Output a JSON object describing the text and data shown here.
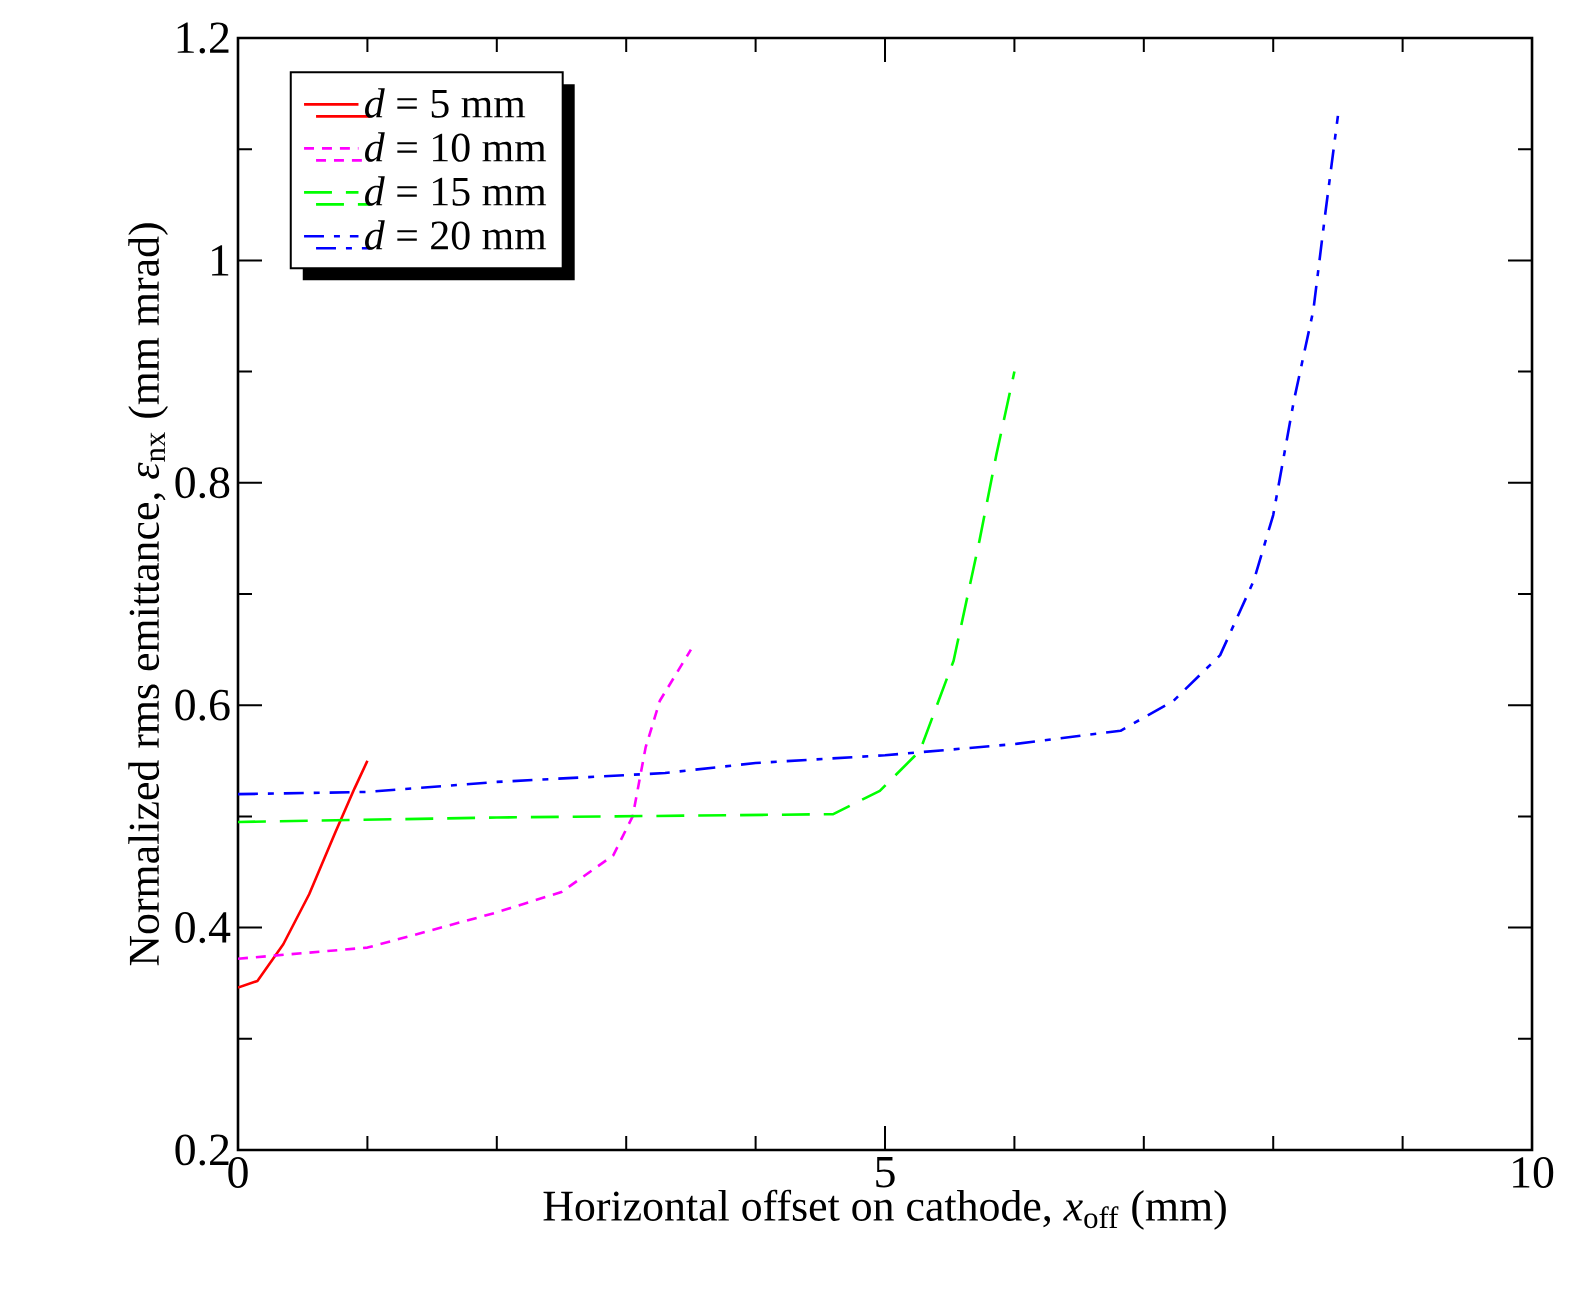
{
  "chart_data": {
    "type": "line",
    "xlabel": "Horizontal offset on cathode, *x*$_{off}$ (mm)",
    "ylabel": "Normalized rms emittance, *ε*$_{nx}$ (mm mrad)",
    "xlim": [
      0,
      10
    ],
    "xticks": [
      0,
      5,
      10
    ],
    "ylim": [
      0.2,
      1.2
    ],
    "yticks": [
      0.2,
      0.4,
      0.6,
      0.8,
      1,
      1.2
    ],
    "legend": "top left",
    "series": [
      {
        "name": "*d* = 5 mm",
        "color": "#ff0000",
        "line_style": "solid",
        "x": [
          0,
          0.15,
          0.35,
          0.55,
          0.75,
          0.9,
          1.0
        ],
        "values": [
          0.346,
          0.352,
          0.385,
          0.43,
          0.485,
          0.525,
          0.55
        ]
      },
      {
        "name": "*d* = 10 mm",
        "color": "#ff00ff",
        "line_style": "dotted",
        "x": [
          0,
          1,
          1.98,
          2.5,
          2.9,
          3.05,
          3.15,
          3.26,
          3.5
        ],
        "values": [
          0.372,
          0.382,
          0.413,
          0.432,
          0.465,
          0.5,
          0.562,
          0.604,
          0.65
        ]
      },
      {
        "name": "*d* = 15 mm",
        "color": "#00ff00",
        "line_style": "dashed",
        "x": [
          0,
          2,
          4.6,
          4.96,
          5.27,
          5.53,
          5.73,
          5.86,
          6.0
        ],
        "values": [
          0.495,
          0.499,
          0.502,
          0.523,
          0.559,
          0.64,
          0.748,
          0.825,
          0.9
        ]
      },
      {
        "name": "*d* = 20 mm",
        "color": "#0000ff",
        "line_style": "dashdot",
        "x": [
          0,
          1,
          2,
          3.3,
          4,
          5,
          6,
          6.82,
          7.23,
          7.59,
          7.85,
          8.0,
          8.16,
          8.31,
          8.4,
          8.5
        ],
        "values": [
          0.52,
          0.522,
          0.531,
          0.539,
          0.548,
          0.555,
          0.565,
          0.577,
          0.604,
          0.645,
          0.712,
          0.771,
          0.874,
          0.955,
          1.04,
          1.13
        ]
      }
    ]
  }
}
